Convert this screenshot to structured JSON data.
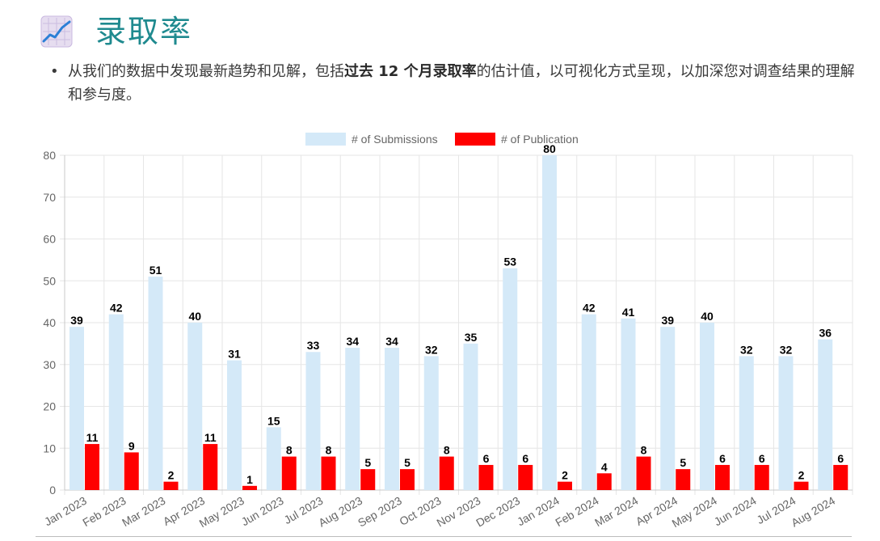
{
  "header": {
    "title": "录取率",
    "icon": "line-chart-icon",
    "intro_before": "从我们的数据中发现最新趋势和见解，包括",
    "intro_bold": "过去 12 个月录取率",
    "intro_after": "的估计值，以可视化方式呈现，以加深您对调查结果的理解和参与度。"
  },
  "chart_data": {
    "type": "bar",
    "title": "",
    "xlabel": "",
    "ylabel": "",
    "ylim": [
      0,
      80
    ],
    "yticks": [
      0,
      10,
      20,
      30,
      40,
      50,
      60,
      70,
      80
    ],
    "grid": true,
    "legend_position": "top",
    "categories": [
      "Jan 2023",
      "Feb 2023",
      "Mar 2023",
      "Apr 2023",
      "May 2023",
      "Jun 2023",
      "Jul 2023",
      "Aug 2023",
      "Sep 2023",
      "Oct 2023",
      "Nov 2023",
      "Dec 2023",
      "Jan 2024",
      "Feb 2024",
      "Mar 2024",
      "Apr 2024",
      "May 2024",
      "Jun 2024",
      "Jul 2024",
      "Aug 2024"
    ],
    "series": [
      {
        "name": "# of Submissions",
        "color": "#d4e9f8",
        "values": [
          39,
          42,
          51,
          40,
          31,
          15,
          33,
          34,
          34,
          32,
          35,
          53,
          80,
          42,
          41,
          39,
          40,
          32,
          32,
          36
        ]
      },
      {
        "name": "# of Publication",
        "color": "#ff0000",
        "values": [
          11,
          9,
          2,
          11,
          1,
          8,
          8,
          5,
          5,
          8,
          6,
          6,
          2,
          4,
          8,
          5,
          6,
          6,
          2,
          6
        ]
      }
    ]
  }
}
